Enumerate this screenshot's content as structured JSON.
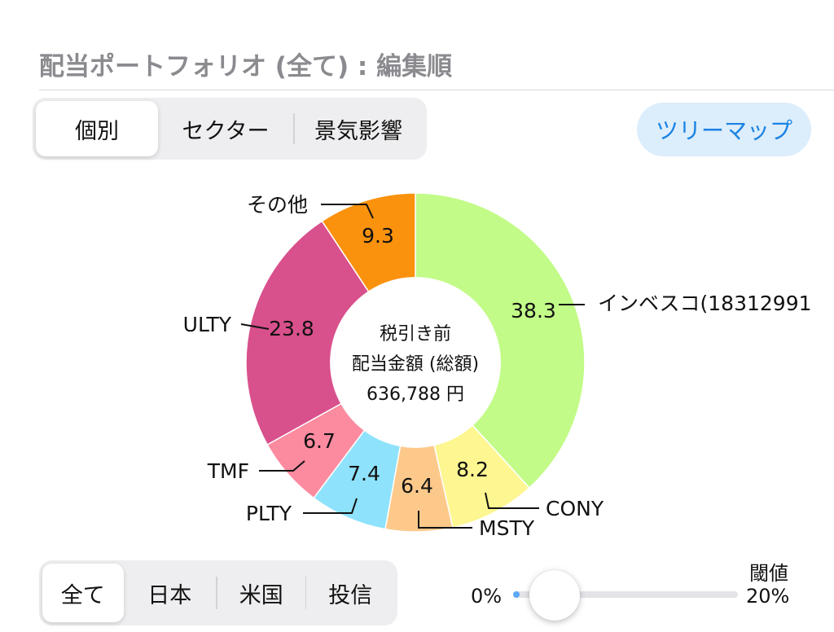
{
  "header": {
    "title": "配当ポートフォリオ (全て) : 編集順"
  },
  "view_tabs": {
    "items": [
      {
        "label": "個別",
        "active": true
      },
      {
        "label": "セクター",
        "active": false
      },
      {
        "label": "景気影響",
        "active": false
      }
    ]
  },
  "treemap_button": {
    "label": "ツリーマップ"
  },
  "chart_data": {
    "type": "pie",
    "subtype": "donut",
    "center_text": [
      "税引き前",
      "配当金額 (総額)",
      "636,788 円"
    ],
    "slices": [
      {
        "label": "インベスコ(18312991",
        "value": 38.3,
        "color": "#c2fb88"
      },
      {
        "label": "CONY",
        "value": 8.2,
        "color": "#fdf691"
      },
      {
        "label": "MSTY",
        "value": 6.4,
        "color": "#fdc98b"
      },
      {
        "label": "PLTY",
        "value": 7.4,
        "color": "#8fe2fb"
      },
      {
        "label": "TMF",
        "value": 6.7,
        "color": "#fc8ba0"
      },
      {
        "label": "ULTY",
        "value": 23.8,
        "color": "#d8508c"
      },
      {
        "label": "その他",
        "value": 9.3,
        "color": "#fa920e"
      }
    ]
  },
  "market_tabs": {
    "items": [
      {
        "label": "全て",
        "active": true
      },
      {
        "label": "日本",
        "active": false
      },
      {
        "label": "米国",
        "active": false
      },
      {
        "label": "投信",
        "active": false
      }
    ]
  },
  "threshold": {
    "label": "閾値",
    "min_label": "0%",
    "max_label": "20%",
    "value_percent": 0
  }
}
